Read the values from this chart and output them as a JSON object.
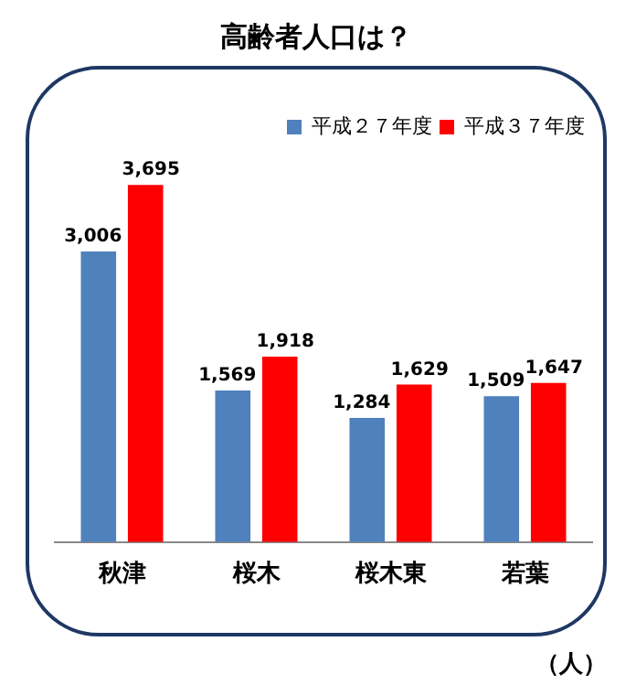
{
  "chart_data": {
    "type": "bar",
    "title": "高齢者人口は？",
    "categories": [
      "秋津",
      "桜木",
      "桜木東",
      "若葉"
    ],
    "series": [
      {
        "name": "平成２７年度",
        "color": "#4f81bd",
        "values": [
          3006,
          1569,
          1284,
          1509
        ],
        "value_labels": [
          "3,006",
          "1,569",
          "1,284",
          "1,509"
        ]
      },
      {
        "name": "平成３７年度",
        "color": "#ff0000",
        "values": [
          3695,
          1918,
          1629,
          1647
        ],
        "value_labels": [
          "3,695",
          "1,918",
          "1,629",
          "1,647"
        ]
      }
    ],
    "legend": "top right",
    "grid": false,
    "annotations": [
      "（人）"
    ]
  }
}
